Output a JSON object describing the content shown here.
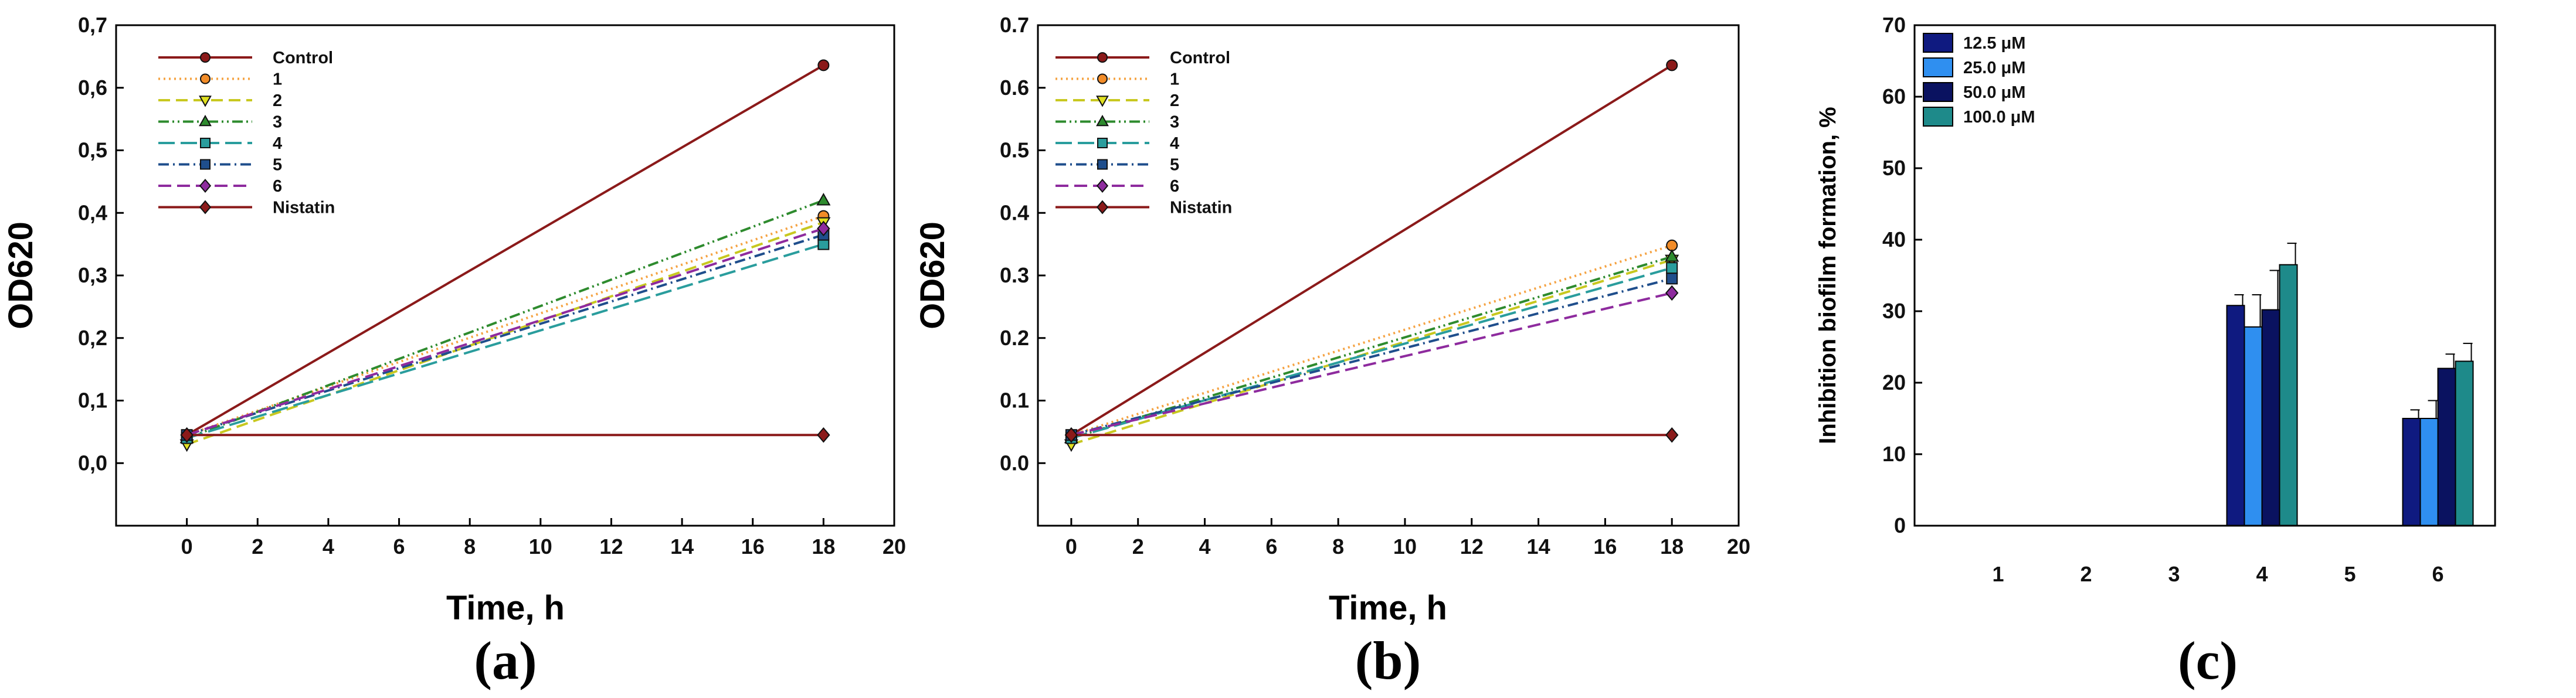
{
  "chart_data": [
    {
      "type": "line",
      "panel_label": "(a)",
      "xlabel": "Time, h",
      "ylabel": "OD620",
      "xlim": [
        -2,
        20
      ],
      "ylim": [
        -0.1,
        0.7
      ],
      "x_ticks": [
        0,
        2,
        4,
        6,
        8,
        10,
        12,
        14,
        16,
        18,
        20
      ],
      "y_ticks": [
        "0,0",
        "0,1",
        "0,2",
        "0,3",
        "0,4",
        "0,5",
        "0,6",
        "0,7"
      ],
      "y_tick_values": [
        0,
        0.1,
        0.2,
        0.3,
        0.4,
        0.5,
        0.6,
        0.7
      ],
      "x": [
        0,
        18
      ],
      "series": [
        {
          "name": "Control",
          "values": [
            0.045,
            0.636
          ],
          "color": "#8b1a1a",
          "dash": "",
          "marker": "circle",
          "fill": "#8b1a1a"
        },
        {
          "name": "1",
          "values": [
            0.045,
            0.395
          ],
          "color": "#f5a343",
          "dash": "3 6",
          "marker": "circle",
          "fill": "#f28c28"
        },
        {
          "name": "2",
          "values": [
            0.03,
            0.385
          ],
          "color": "#c8c820",
          "dash": "20 10",
          "marker": "triangle-down",
          "fill": "#e0e020"
        },
        {
          "name": "3",
          "values": [
            0.04,
            0.42
          ],
          "color": "#2e8b2e",
          "dash": "18 6 3 6 3 6",
          "marker": "triangle-up",
          "fill": "#2e8b2e"
        },
        {
          "name": "4",
          "values": [
            0.04,
            0.35
          ],
          "color": "#2a9d9d",
          "dash": "28 10",
          "marker": "square",
          "fill": "#2a9d9d"
        },
        {
          "name": "5",
          "values": [
            0.045,
            0.365
          ],
          "color": "#1f4e8c",
          "dash": "18 7 3 7",
          "marker": "square",
          "fill": "#1f4e8c"
        },
        {
          "name": "6",
          "values": [
            0.045,
            0.375
          ],
          "color": "#8e2b9e",
          "dash": "22 10",
          "marker": "diamond",
          "fill": "#8e2b9e"
        },
        {
          "name": "Nistatin",
          "values": [
            0.045,
            0.045
          ],
          "color": "#8b1a1a",
          "dash": "",
          "marker": "diamond",
          "fill": "#8b1a1a"
        }
      ]
    },
    {
      "type": "line",
      "panel_label": "(b)",
      "xlabel": "Time, h",
      "ylabel": "OD620",
      "xlim": [
        -1,
        20
      ],
      "ylim": [
        -0.1,
        0.7
      ],
      "x_ticks": [
        0,
        2,
        4,
        6,
        8,
        10,
        12,
        14,
        16,
        18,
        20
      ],
      "y_ticks": [
        "0.0",
        "0.1",
        "0.2",
        "0.3",
        "0.4",
        "0.5",
        "0.6",
        "0.7"
      ],
      "y_tick_values": [
        0,
        0.1,
        0.2,
        0.3,
        0.4,
        0.5,
        0.6,
        0.7
      ],
      "x": [
        0,
        18
      ],
      "series": [
        {
          "name": "Control",
          "values": [
            0.045,
            0.636
          ],
          "color": "#8b1a1a",
          "dash": "",
          "marker": "circle",
          "fill": "#8b1a1a"
        },
        {
          "name": "1",
          "values": [
            0.045,
            0.348
          ],
          "color": "#f5a343",
          "dash": "3 6",
          "marker": "circle",
          "fill": "#f28c28"
        },
        {
          "name": "2",
          "values": [
            0.03,
            0.325
          ],
          "color": "#c8c820",
          "dash": "20 10",
          "marker": "triangle-down",
          "fill": "#e0e020"
        },
        {
          "name": "3",
          "values": [
            0.04,
            0.33
          ],
          "color": "#2e8b2e",
          "dash": "18 6 3 6 3 6",
          "marker": "triangle-up",
          "fill": "#2e8b2e"
        },
        {
          "name": "4",
          "values": [
            0.04,
            0.312
          ],
          "color": "#2a9d9d",
          "dash": "28 10",
          "marker": "square",
          "fill": "#2a9d9d"
        },
        {
          "name": "5",
          "values": [
            0.045,
            0.295
          ],
          "color": "#1f4e8c",
          "dash": "18 7 3 7",
          "marker": "square",
          "fill": "#1f4e8c"
        },
        {
          "name": "6",
          "values": [
            0.045,
            0.272
          ],
          "color": "#8e2b9e",
          "dash": "22 10",
          "marker": "diamond",
          "fill": "#8e2b9e"
        },
        {
          "name": "Nistatin",
          "values": [
            0.045,
            0.045
          ],
          "color": "#8b1a1a",
          "dash": "",
          "marker": "diamond",
          "fill": "#8b1a1a"
        }
      ]
    },
    {
      "type": "bar",
      "panel_label": "(c)",
      "xlabel": "",
      "ylabel": "Inhibition biofilm formation, %",
      "ylim": [
        0,
        70
      ],
      "y_ticks": [
        0,
        10,
        20,
        30,
        40,
        50,
        60,
        70
      ],
      "categories": [
        "1",
        "2",
        "3",
        "4",
        "5",
        "6"
      ],
      "series": [
        {
          "name": "12.5 μM",
          "color": "#0f1a80",
          "values": [
            0,
            0,
            0,
            30.8,
            0,
            15.0
          ],
          "errors": [
            0,
            0,
            0,
            1.5,
            0,
            1.2
          ]
        },
        {
          "name": "25.0 μM",
          "color": "#2f8ff0",
          "values": [
            0,
            0,
            0,
            27.8,
            0,
            15.0
          ],
          "errors": [
            0,
            0,
            0,
            4.5,
            0,
            2.5
          ]
        },
        {
          "name": "50.0 μM",
          "color": "#0a1260",
          "values": [
            0,
            0,
            0,
            30.2,
            0,
            22.0
          ],
          "errors": [
            0,
            0,
            0,
            5.5,
            0,
            2.0
          ]
        },
        {
          "name": "100.0 μM",
          "color": "#1e8a8a",
          "values": [
            0,
            0,
            0,
            36.5,
            0,
            23.0
          ],
          "errors": [
            0,
            0,
            0,
            3.0,
            0,
            2.5
          ]
        }
      ]
    }
  ]
}
